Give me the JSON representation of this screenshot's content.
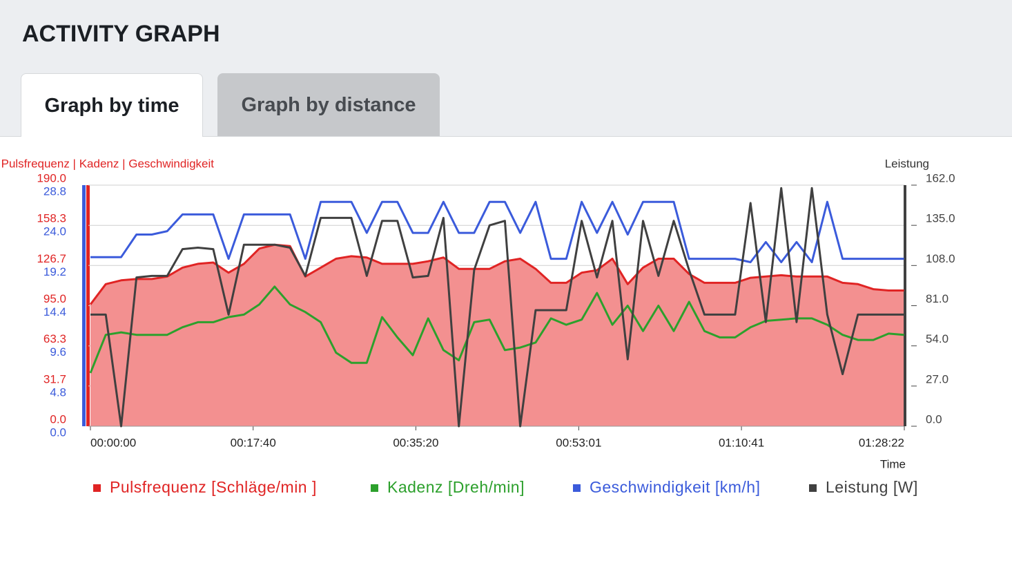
{
  "header": {
    "title": "ACTIVITY GRAPH"
  },
  "tabs": [
    "Graph by time",
    "Graph by distance"
  ],
  "chart_data": {
    "type": "line",
    "ylabel": "Pulsfrequenz | Kadenz | Geschwindigkeit",
    "y2label": "Leistung",
    "xlabel": "Time",
    "xlim": [
      0,
      5302
    ],
    "xticks": [
      {
        "value": 0,
        "label": "00:00:00"
      },
      {
        "value": 1060,
        "label": "00:17:40"
      },
      {
        "value": 2120,
        "label": "00:35:20"
      },
      {
        "value": 3181,
        "label": "00:53:01"
      },
      {
        "value": 4241,
        "label": "01:10:41"
      },
      {
        "value": 5302,
        "label": "01:28:22"
      }
    ],
    "ylim": [
      0,
      190
    ],
    "yticks": [
      {
        "value": 0,
        "label": "0.0"
      },
      31.7,
      63.3,
      {
        "value": 95,
        "label": "95.0"
      },
      126.7,
      158.3,
      {
        "value": 190,
        "label": "190.0"
      }
    ],
    "y3lim": [
      0,
      28.8
    ],
    "y3ticks": [
      {
        "value": 0,
        "label": "0.0"
      },
      4.8,
      9.6,
      14.4,
      19.2,
      {
        "value": 24,
        "label": "24.0"
      },
      28.8
    ],
    "y2lim": [
      0,
      162
    ],
    "y2ticks": [
      {
        "value": 0,
        "label": "0.0"
      },
      {
        "value": 27,
        "label": "27.0"
      },
      {
        "value": 54,
        "label": "54.0"
      },
      {
        "value": 81,
        "label": "81.0"
      },
      {
        "value": 108,
        "label": "108.0"
      },
      {
        "value": 135,
        "label": "135.0"
      },
      {
        "value": 162,
        "label": "162.0"
      }
    ],
    "grid": true,
    "x": [
      0,
      100,
      200,
      300,
      400,
      500,
      600,
      700,
      800,
      900,
      1000,
      1100,
      1200,
      1300,
      1400,
      1500,
      1600,
      1700,
      1800,
      1900,
      2000,
      2100,
      2200,
      2300,
      2400,
      2500,
      2600,
      2700,
      2800,
      2900,
      3000,
      3100,
      3200,
      3300,
      3400,
      3500,
      3600,
      3700,
      3800,
      3900,
      4000,
      4100,
      4200,
      4300,
      4400,
      4500,
      4600,
      4700,
      4800,
      4900,
      5000,
      5100,
      5200,
      5300
    ],
    "series": [
      {
        "name": "Pulsfrequenz [Schläge/min ]",
        "color": "#e02424",
        "fill": "#f39090",
        "axis": "y",
        "values": [
          96,
          112,
          115,
          116,
          116,
          118,
          125,
          128,
          129,
          121,
          128,
          140,
          143,
          142,
          118,
          125,
          132,
          134,
          133,
          128,
          128,
          128,
          130,
          133,
          124,
          124,
          124,
          130,
          132,
          124,
          113,
          113,
          121,
          123,
          132,
          112,
          125,
          132,
          132,
          120,
          113,
          113,
          113,
          117,
          118,
          119,
          118,
          118,
          118,
          113,
          112,
          108,
          107,
          107
        ]
      },
      {
        "name": "Kadenz [Dreh/min]",
        "color": "#2ca02c",
        "axis": "y",
        "values": [
          42,
          72,
          74,
          72,
          72,
          72,
          78,
          82,
          82,
          86,
          88,
          96,
          110,
          96,
          90,
          82,
          58,
          50,
          50,
          86,
          70,
          56,
          85,
          60,
          52,
          82,
          84,
          60,
          62,
          66,
          85,
          80,
          84,
          105,
          80,
          95,
          75,
          95,
          75,
          98,
          75,
          70,
          70,
          78,
          83,
          84,
          85,
          85,
          80,
          72,
          68,
          68,
          73,
          72
        ]
      },
      {
        "name": "Geschwindigkeit [km/h]",
        "color": "#3b5bdb",
        "axis": "y3",
        "values": [
          20.2,
          20.2,
          20.2,
          22.9,
          22.9,
          23.3,
          25.3,
          25.3,
          25.3,
          20.0,
          25.3,
          25.3,
          25.3,
          25.3,
          20.0,
          26.8,
          26.8,
          26.8,
          23.1,
          26.8,
          26.8,
          23.1,
          23.1,
          26.8,
          23.1,
          23.1,
          26.8,
          26.8,
          23.1,
          26.8,
          20.0,
          20.0,
          26.8,
          23.1,
          26.8,
          22.9,
          26.8,
          26.8,
          26.8,
          20.0,
          20.0,
          20.0,
          20.0,
          19.6,
          22.0,
          19.6,
          22.0,
          19.6,
          26.8,
          20.0,
          20.0,
          20.0,
          20.0,
          20.0
        ]
      },
      {
        "name": "Leistung [W]",
        "color": "#404040",
        "axis": "y2",
        "values": [
          75,
          75,
          0,
          100,
          101,
          101,
          119,
          120,
          119,
          75,
          122,
          122,
          122,
          120,
          101,
          140,
          140,
          140,
          101,
          138,
          138,
          100,
          101,
          140,
          0,
          105,
          135,
          138,
          0,
          78,
          78,
          78,
          138,
          100,
          138,
          45,
          138,
          101,
          138,
          105,
          75,
          75,
          75,
          150,
          70,
          160,
          70,
          160,
          75,
          35,
          75,
          75,
          75,
          75
        ]
      }
    ]
  }
}
